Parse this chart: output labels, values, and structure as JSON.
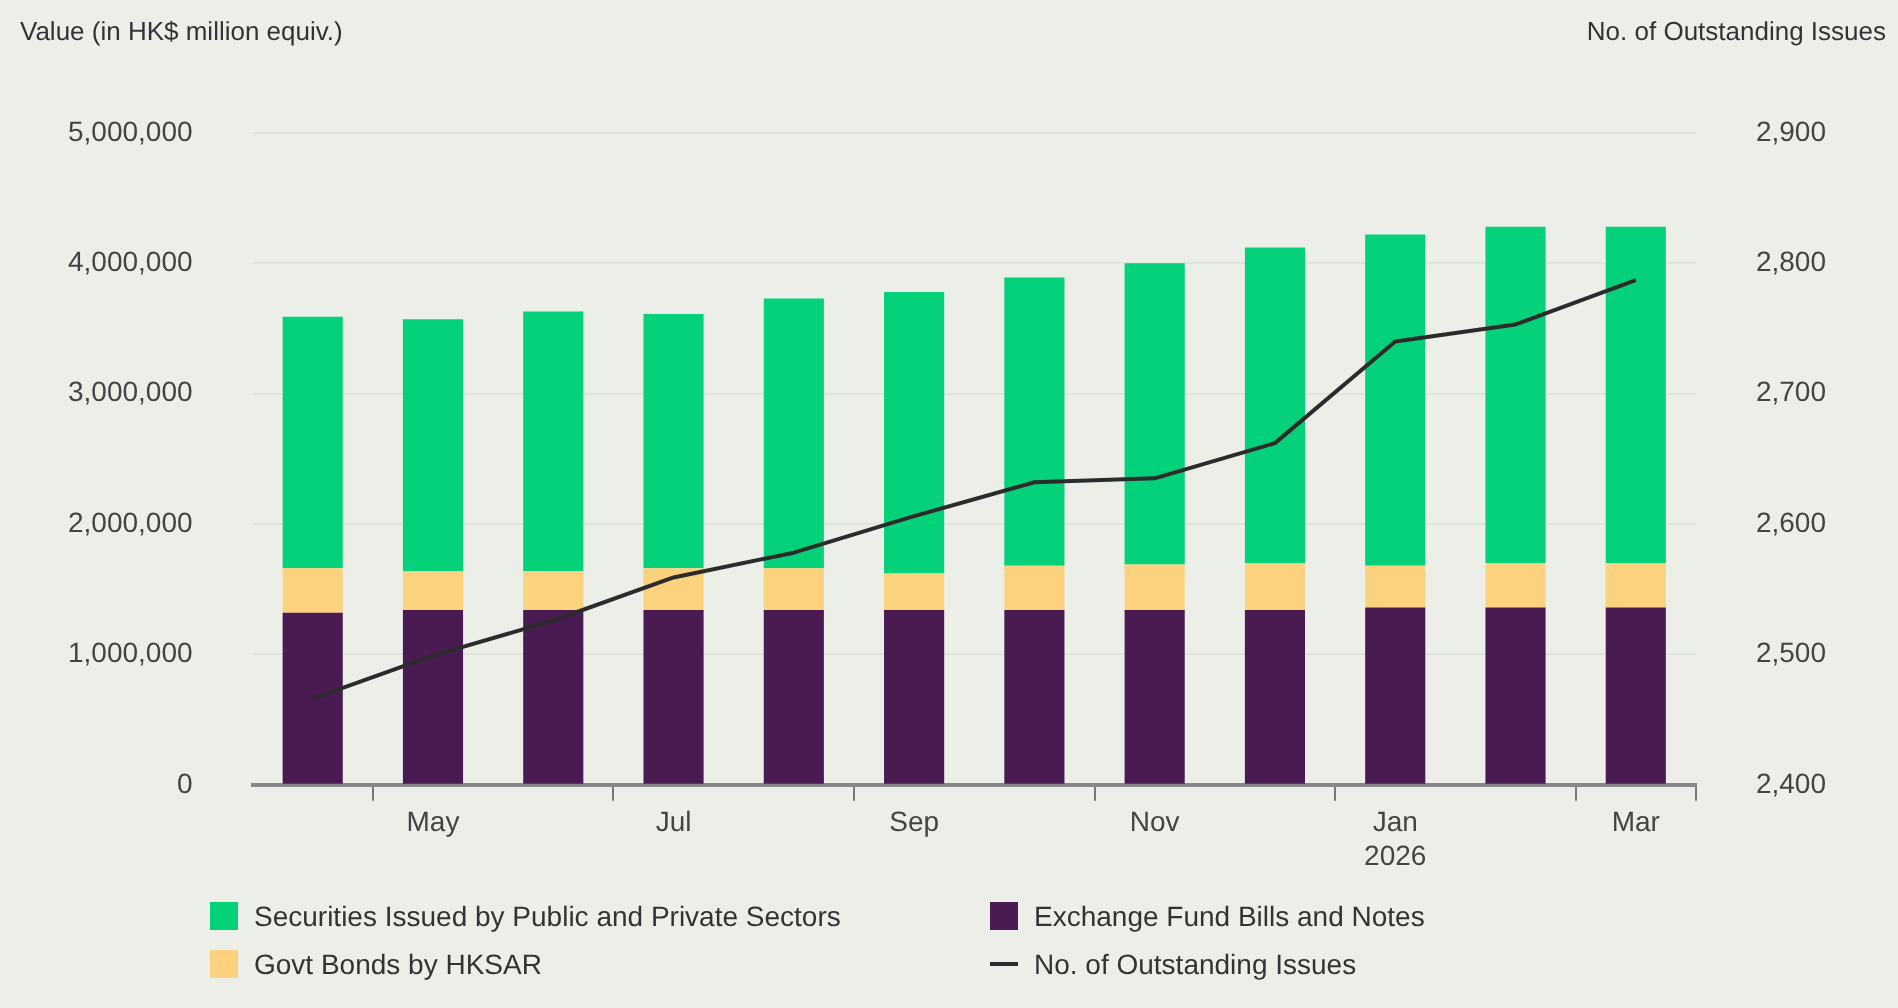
{
  "chart_data": {
    "type": "bar",
    "stacked": true,
    "ylabel": "Value (in HK$ million equiv.)",
    "y2label": "No. of Outstanding Issues",
    "categories": [
      null,
      "May",
      null,
      "Jul",
      null,
      "Sep",
      null,
      "Nov",
      null,
      "Jan\n2026",
      null,
      "Mar"
    ],
    "series": [
      {
        "name": "Exchange Fund Bills and Notes",
        "color": "#4a1b52",
        "values": [
          1320000,
          1340000,
          1340000,
          1340000,
          1340000,
          1340000,
          1340000,
          1340000,
          1340000,
          1360000,
          1360000,
          1360000
        ]
      },
      {
        "name": "Govt Bonds by HKSAR",
        "color": "#fcd27f",
        "values": [
          340000,
          300000,
          300000,
          320000,
          320000,
          280000,
          340000,
          350000,
          360000,
          320000,
          340000,
          340000
        ]
      },
      {
        "name": "Securities Issued by Public and Private Sectors",
        "color": "#05d17a",
        "values": [
          1930000,
          1930000,
          1990000,
          1950000,
          2070000,
          2160000,
          2210000,
          2310000,
          2420000,
          2540000,
          2580000,
          2580000
        ]
      },
      {
        "name": "No. of Outstanding Issues",
        "type": "line",
        "axis": "y2",
        "color": "#2b2b2b",
        "values": [
          2466,
          2499,
          2526,
          2559,
          2578,
          2606,
          2632,
          2635,
          2662,
          2740,
          2753,
          2787
        ]
      }
    ],
    "ylim": [
      0,
      5000000
    ],
    "yticks": [
      0,
      {
        "value": 1000000,
        "label": "1,000,000"
      },
      {
        "value": 2000000,
        "label": "2,000,000"
      },
      {
        "value": 3000000,
        "label": "3,000,000"
      },
      {
        "value": 4000000,
        "label": "4,000,000"
      },
      {
        "value": 5000000,
        "label": "5,000,000"
      }
    ],
    "y2lim": [
      2400,
      2900
    ],
    "y2ticks": [
      {
        "value": 2400,
        "label": "2,400"
      },
      {
        "value": 2500,
        "label": "2,500"
      },
      {
        "value": 2600,
        "label": "2,600"
      },
      {
        "value": 2700,
        "label": "2,700"
      },
      {
        "value": 2800,
        "label": "2,800"
      },
      {
        "value": 2900,
        "label": "2,900"
      }
    ],
    "grid": "y",
    "legend": "bottom",
    "marker": "none"
  }
}
